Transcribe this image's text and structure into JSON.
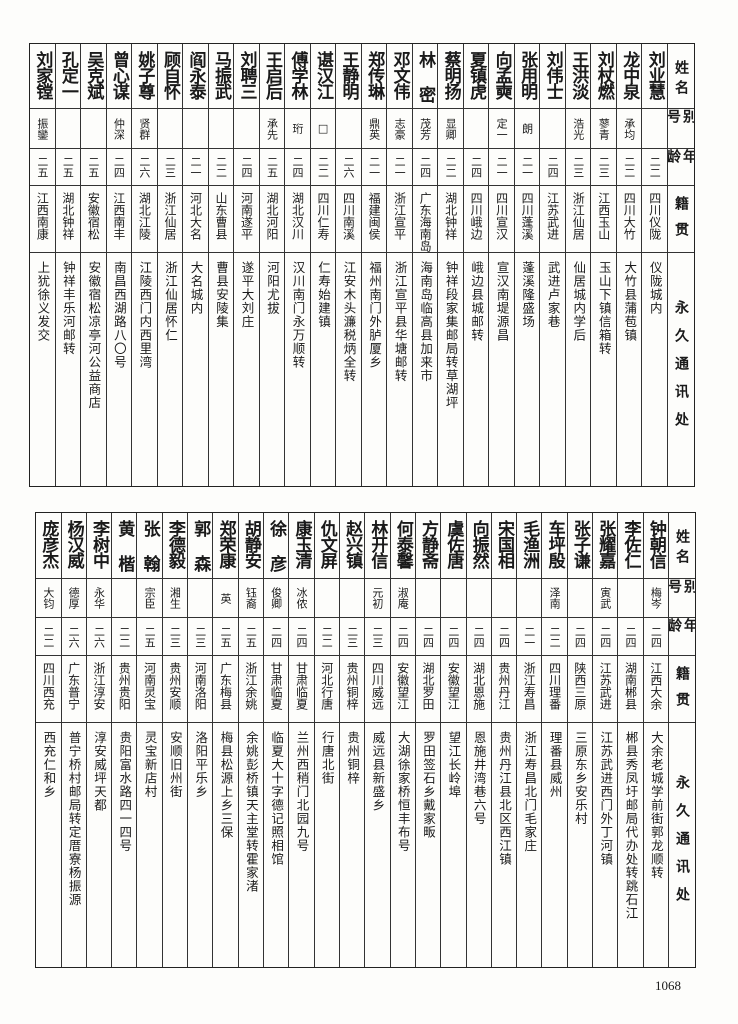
{
  "header": {
    "name": "姓名",
    "alias": "别号",
    "age": "年龄",
    "origin": "籍贯",
    "address": "永久通讯处"
  },
  "tables": [
    {
      "rows": [
        {
          "name": "刘业慧",
          "alias": "",
          "age": "二二",
          "origin": "四川仪陇",
          "address": "仪陇城内"
        },
        {
          "name": "龙中泉",
          "alias": "承均",
          "age": "二二",
          "origin": "四川大竹",
          "address": "大竹县蒲苞镇"
        },
        {
          "name": "刘杖燃",
          "alias": "蓼青",
          "age": "二三",
          "origin": "江西玉山",
          "address": "玉山下镇信箱转"
        },
        {
          "name": "王洪淡",
          "alias": "浩光",
          "age": "二三",
          "origin": "浙江仙居",
          "address": "仙居城内学后"
        },
        {
          "name": "刘伟士",
          "alias": "",
          "age": "二四",
          "origin": "江苏武进",
          "address": "武进卢家巷"
        },
        {
          "name": "张用明",
          "alias": "朗",
          "age": "二一",
          "origin": "四川蓬溪",
          "address": "蓬溪隆盛场"
        },
        {
          "name": "向孟奭",
          "alias": "定一",
          "age": "二一",
          "origin": "四川宣汉",
          "address": "宣汉南堤源昌"
        },
        {
          "name": "夏镇虎",
          "alias": "",
          "age": "二四",
          "origin": "四川峨边",
          "address": "峨边县城邮转"
        },
        {
          "name": "蔡明扬",
          "alias": "显卿",
          "age": "二二",
          "origin": "湖北钟祥",
          "address": "钟祥段家集邮局转草湖坪"
        },
        {
          "name": "林 密",
          "alias": "茂芳",
          "age": "二四",
          "origin": "广东海南岛",
          "address": "海南岛临高县加来市"
        },
        {
          "name": "邓文伟",
          "alias": "志豪",
          "age": "二一",
          "origin": "浙江宣平",
          "address": "浙江宣平县华塘邮转"
        },
        {
          "name": "郑传琳",
          "alias": "鼎英",
          "age": "二一",
          "origin": "福建闽侯",
          "address": "福州南门外胪厦乡"
        },
        {
          "name": "王静明",
          "alias": "",
          "age": "二六",
          "origin": "四川南溪",
          "address": "江安木头濂税炳全转"
        },
        {
          "name": "谌汉江",
          "alias": "□",
          "age": "二二",
          "origin": "四川仁寿",
          "address": "仁寿始建镇"
        },
        {
          "name": "傅学林",
          "alias": "珩",
          "age": "二四",
          "origin": "湖北汉川",
          "address": "汉川南门永万顺转"
        },
        {
          "name": "王启后",
          "alias": "承先",
          "age": "二五",
          "origin": "湖北河阳",
          "address": "河阳尤拔"
        },
        {
          "name": "刘聘三",
          "alias": "",
          "age": "二四",
          "origin": "河南遂平",
          "address": "遂平大刘庄"
        },
        {
          "name": "马振武",
          "alias": "",
          "age": "二二",
          "origin": "山东曹县",
          "address": "曹县安陵集"
        },
        {
          "name": "阎永泰",
          "alias": "",
          "age": "二一",
          "origin": "河北大名",
          "address": "大名城内"
        },
        {
          "name": "顾自怀",
          "alias": "",
          "age": "二三",
          "origin": "浙江仙居",
          "address": "浙江仙居怀仁"
        },
        {
          "name": "姚子尊",
          "alias": "贤群",
          "age": "二六",
          "origin": "湖北江陵",
          "address": "江陵西门内西里湾"
        },
        {
          "name": "曾心谋",
          "alias": "仲深",
          "age": "二四",
          "origin": "江西南丰",
          "address": "南昌西湖路八〇号"
        },
        {
          "name": "吴克斌",
          "alias": "",
          "age": "二五",
          "origin": "安徽宿松",
          "address": "安徽宿松凉亭河公益商店"
        },
        {
          "name": "孔定一",
          "alias": "",
          "age": "二五",
          "origin": "湖北钟祥",
          "address": "钟祥丰乐河邮转"
        },
        {
          "name": "刘家镗",
          "alias": "振鑾",
          "age": "二五",
          "origin": "江西南康",
          "address": "上犹徐义发交"
        }
      ]
    },
    {
      "rows": [
        {
          "name": "钟朝信",
          "alias": "梅岑",
          "age": "二四",
          "origin": "江西大余",
          "address": "大余老城学前街郭龙顺转"
        },
        {
          "name": "李佐仁",
          "alias": "",
          "age": "二四",
          "origin": "湖南郴县",
          "address": "郴县秀凤圩邮局代办处转跳石江"
        },
        {
          "name": "张耀嘉",
          "alias": "寅武",
          "age": "二四",
          "origin": "江苏武进",
          "address": "江苏武进西门外丁河镇"
        },
        {
          "name": "张子谦",
          "alias": "",
          "age": "二四",
          "origin": "陕西三原",
          "address": "三原东乡安乐村"
        },
        {
          "name": "车坪殷",
          "alias": "泽南",
          "age": "二二",
          "origin": "四川理番",
          "address": "理番县威州"
        },
        {
          "name": "毛渔洲",
          "alias": "",
          "age": "二一",
          "origin": "浙江寿昌",
          "address": "浙江寿昌北门毛家庄"
        },
        {
          "name": "宋国相",
          "alias": "",
          "age": "二四",
          "origin": "贵州丹江",
          "address": "贵州丹江县北区西江镇"
        },
        {
          "name": "向振然",
          "alias": "",
          "age": "二四",
          "origin": "湖北恩施",
          "address": "恩施井湾巷六号"
        },
        {
          "name": "虞佐唐",
          "alias": "",
          "age": "二四",
          "origin": "安徽望江",
          "address": "望江长岭埠"
        },
        {
          "name": "方静斋",
          "alias": "",
          "age": "二四",
          "origin": "湖北罗田",
          "address": "罗田签石乡戴家畈"
        },
        {
          "name": "何泰馨",
          "alias": "淑庵",
          "age": "二四",
          "origin": "安徽望江",
          "address": "大湖徐家桥恒丰布号"
        },
        {
          "name": "林开信",
          "alias": "元初",
          "age": "二三",
          "origin": "四川威远",
          "address": "威远县新盛乡"
        },
        {
          "name": "赵兴镇",
          "alias": "",
          "age": "二三",
          "origin": "贵州铜梓",
          "address": "贵州铜梓"
        },
        {
          "name": "仇文屏",
          "alias": "",
          "age": "二二",
          "origin": "河北行唐",
          "address": "行唐北街"
        },
        {
          "name": "康玉清",
          "alias": "冰侬",
          "age": "二四",
          "origin": "甘肃临夏",
          "address": "兰州西稍门北园九号"
        },
        {
          "name": "徐 彦",
          "alias": "俊卿",
          "age": "二四",
          "origin": "甘肃临夏",
          "address": "临夏大十字德记照相馆"
        },
        {
          "name": "胡静安",
          "alias": "钰裔",
          "age": "二五",
          "origin": "浙江余姚",
          "address": "余姚彭桥镇天主堂转霍家渚"
        },
        {
          "name": "郑荣康",
          "alias": "英",
          "age": "二五",
          "origin": "广东梅县",
          "address": "梅县松源上乡三保"
        },
        {
          "name": "郭 森",
          "alias": "",
          "age": "二三",
          "origin": "河南洛阳",
          "address": "洛阳平乐乡"
        },
        {
          "name": "李德毅",
          "alias": "湘生",
          "age": "二三",
          "origin": "贵州安顺",
          "address": "安顺旧州街"
        },
        {
          "name": "张 翰",
          "alias": "宗臣",
          "age": "二五",
          "origin": "河南灵宝",
          "address": "灵宝新店村"
        },
        {
          "name": "黄 楷",
          "alias": "",
          "age": "二二",
          "origin": "贵州贵阳",
          "address": "贵阳富水路四一四号"
        },
        {
          "name": "李树中",
          "alias": "永华",
          "age": "二六",
          "origin": "浙江淳安",
          "address": "淳安威坪天都"
        },
        {
          "name": "杨汉威",
          "alias": "德厚",
          "age": "二六",
          "origin": "广东普宁",
          "address": "普宁桥村邮局转定厝寮杨振源"
        },
        {
          "name": "庞彦杰",
          "alias": "大钧",
          "age": "二二",
          "origin": "四川西充",
          "address": "西充仁和乡"
        }
      ]
    }
  ],
  "page_number": "1068"
}
